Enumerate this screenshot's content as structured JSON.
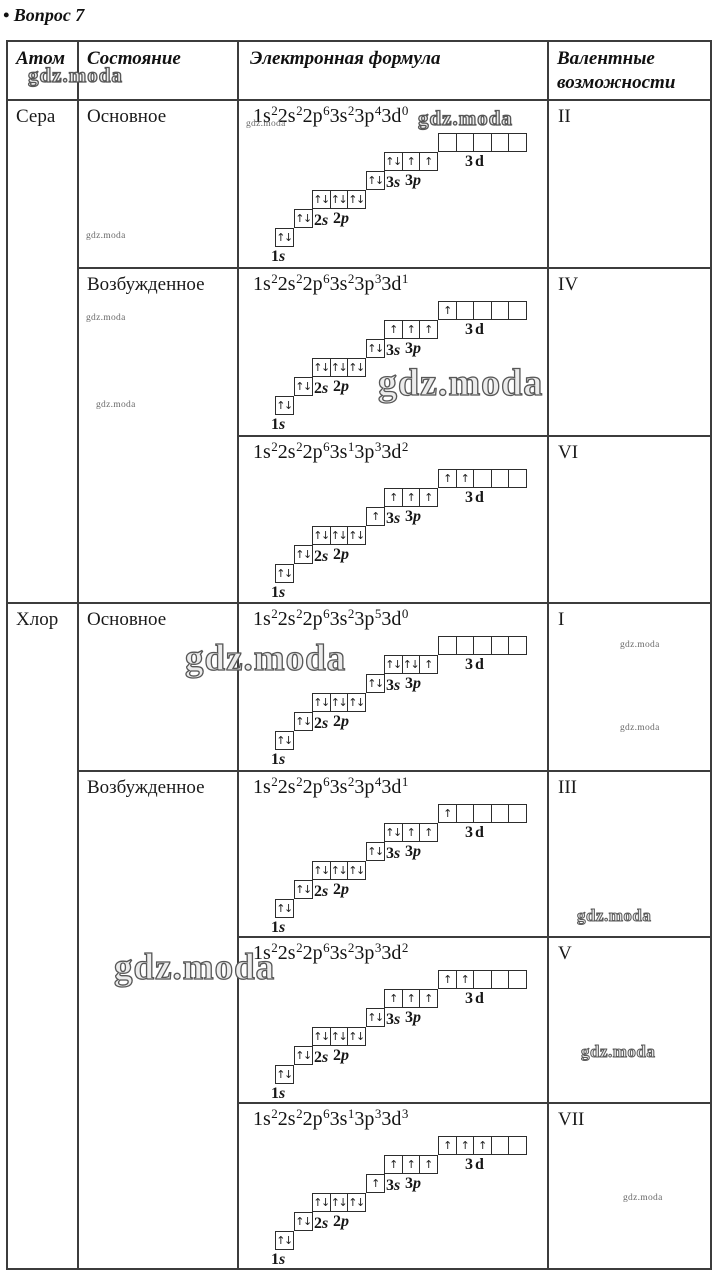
{
  "page": {
    "title": "• Вопрос 7"
  },
  "watermark_text": "gdz.moda",
  "table": {
    "headers": [
      "Атом",
      "Состояние",
      "Электронная формула",
      "Валентные возможности"
    ],
    "rows": [
      {
        "atom": "Сера",
        "state": "Основное",
        "formula": [
          [
            "1s",
            "2"
          ],
          [
            "2s",
            "2"
          ],
          [
            "2p",
            "6"
          ],
          [
            "3s",
            "2"
          ],
          [
            "3p",
            "4"
          ],
          [
            "3d",
            "0"
          ]
        ],
        "orbitals": {
          "1s": [
            "ud"
          ],
          "2s": [
            "ud"
          ],
          "2p": [
            "ud",
            "ud",
            "ud"
          ],
          "3s": [
            "ud"
          ],
          "3p": [
            "ud",
            "u",
            "u"
          ],
          "3d": [
            "",
            "",
            "",
            "",
            ""
          ]
        },
        "valence": "II"
      },
      {
        "state": "Возбужденное",
        "formula": [
          [
            "1s",
            "2"
          ],
          [
            "2s",
            "2"
          ],
          [
            "2p",
            "6"
          ],
          [
            "3s",
            "2"
          ],
          [
            "3p",
            "3"
          ],
          [
            "3d",
            "1"
          ]
        ],
        "orbitals": {
          "1s": [
            "ud"
          ],
          "2s": [
            "ud"
          ],
          "2p": [
            "ud",
            "ud",
            "ud"
          ],
          "3s": [
            "ud"
          ],
          "3p": [
            "u",
            "u",
            "u"
          ],
          "3d": [
            "u",
            "",
            "",
            "",
            ""
          ]
        },
        "valence": "IV"
      },
      {
        "formula": [
          [
            "1s",
            "2"
          ],
          [
            "2s",
            "2"
          ],
          [
            "2p",
            "6"
          ],
          [
            "3s",
            "1"
          ],
          [
            "3p",
            "3"
          ],
          [
            "3d",
            "2"
          ]
        ],
        "orbitals": {
          "1s": [
            "ud"
          ],
          "2s": [
            "ud"
          ],
          "2p": [
            "ud",
            "ud",
            "ud"
          ],
          "3s": [
            "u"
          ],
          "3p": [
            "u",
            "u",
            "u"
          ],
          "3d": [
            "u",
            "u",
            "",
            "",
            ""
          ]
        },
        "valence": "VI"
      },
      {
        "atom": "Хлор",
        "state": "Основное",
        "formula": [
          [
            "1s",
            "2"
          ],
          [
            "2s",
            "2"
          ],
          [
            "2p",
            "6"
          ],
          [
            "3s",
            "2"
          ],
          [
            "3p",
            "5"
          ],
          [
            "3d",
            "0"
          ]
        ],
        "orbitals": {
          "1s": [
            "ud"
          ],
          "2s": [
            "ud"
          ],
          "2p": [
            "ud",
            "ud",
            "ud"
          ],
          "3s": [
            "ud"
          ],
          "3p": [
            "ud",
            "ud",
            "u"
          ],
          "3d": [
            "",
            "",
            "",
            "",
            ""
          ]
        },
        "valence": "I"
      },
      {
        "state": "Возбужденное",
        "formula": [
          [
            "1s",
            "2"
          ],
          [
            "2s",
            "2"
          ],
          [
            "2p",
            "6"
          ],
          [
            "3s",
            "2"
          ],
          [
            "3p",
            "4"
          ],
          [
            "3d",
            "1"
          ]
        ],
        "orbitals": {
          "1s": [
            "ud"
          ],
          "2s": [
            "ud"
          ],
          "2p": [
            "ud",
            "ud",
            "ud"
          ],
          "3s": [
            "ud"
          ],
          "3p": [
            "ud",
            "u",
            "u"
          ],
          "3d": [
            "u",
            "",
            "",
            "",
            ""
          ]
        },
        "valence": "III"
      },
      {
        "formula": [
          [
            "1s",
            "2"
          ],
          [
            "2s",
            "2"
          ],
          [
            "2p",
            "6"
          ],
          [
            "3s",
            "2"
          ],
          [
            "3p",
            "3"
          ],
          [
            "3d",
            "2"
          ]
        ],
        "orbitals": {
          "1s": [
            "ud"
          ],
          "2s": [
            "ud"
          ],
          "2p": [
            "ud",
            "ud",
            "ud"
          ],
          "3s": [
            "ud"
          ],
          "3p": [
            "u",
            "u",
            "u"
          ],
          "3d": [
            "u",
            "u",
            "",
            "",
            ""
          ]
        },
        "valence": "V"
      },
      {
        "formula": [
          [
            "1s",
            "2"
          ],
          [
            "2s",
            "2"
          ],
          [
            "2p",
            "6"
          ],
          [
            "3s",
            "1"
          ],
          [
            "3p",
            "3"
          ],
          [
            "3d",
            "3"
          ]
        ],
        "orbitals": {
          "1s": [
            "ud"
          ],
          "2s": [
            "ud"
          ],
          "2p": [
            "ud",
            "ud",
            "ud"
          ],
          "3s": [
            "u"
          ],
          "3p": [
            "u",
            "u",
            "u"
          ],
          "3d": [
            "u",
            "u",
            "u",
            "",
            ""
          ]
        },
        "valence": "VII"
      }
    ]
  }
}
